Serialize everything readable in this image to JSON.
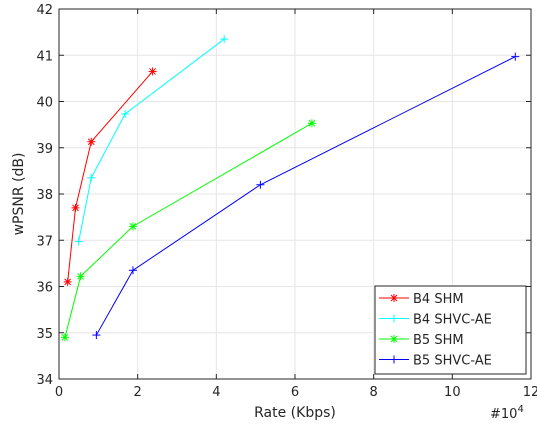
{
  "chart_data": {
    "type": "line",
    "xlabel": "Rate (Kbps)",
    "ylabel": "wPSNR (dB)",
    "x_exponent_label": "#10",
    "x_exponent_power": "4",
    "xlim": [
      0,
      12
    ],
    "ylim": [
      34,
      42
    ],
    "xticks": [
      "0",
      "2",
      "4",
      "6",
      "8",
      "10",
      "12"
    ],
    "yticks": [
      "34",
      "35",
      "36",
      "37",
      "38",
      "39",
      "40",
      "41",
      "42"
    ],
    "grid": true,
    "legend_position": "bottom-right",
    "series": [
      {
        "name": "B4 SHM",
        "color": "#ff0000",
        "marker": "star",
        "x": [
          0.22,
          0.42,
          0.82,
          2.38
        ],
        "y": [
          36.1,
          37.7,
          39.13,
          40.65
        ]
      },
      {
        "name": "B4 SHVC-AE",
        "color": "#00ffff",
        "marker": "plus",
        "x": [
          0.5,
          0.82,
          1.68,
          4.2
        ],
        "y": [
          36.97,
          38.35,
          39.73,
          41.35
        ]
      },
      {
        "name": "B5 SHM",
        "color": "#00ff00",
        "marker": "star",
        "x": [
          0.15,
          0.55,
          1.88,
          6.43
        ],
        "y": [
          34.9,
          36.22,
          37.3,
          39.53
        ]
      },
      {
        "name": "B5 SHVC-AE",
        "color": "#0000ff",
        "marker": "plus",
        "x": [
          0.95,
          1.88,
          5.12,
          11.6
        ],
        "y": [
          34.95,
          36.35,
          38.2,
          40.97
        ]
      }
    ]
  }
}
